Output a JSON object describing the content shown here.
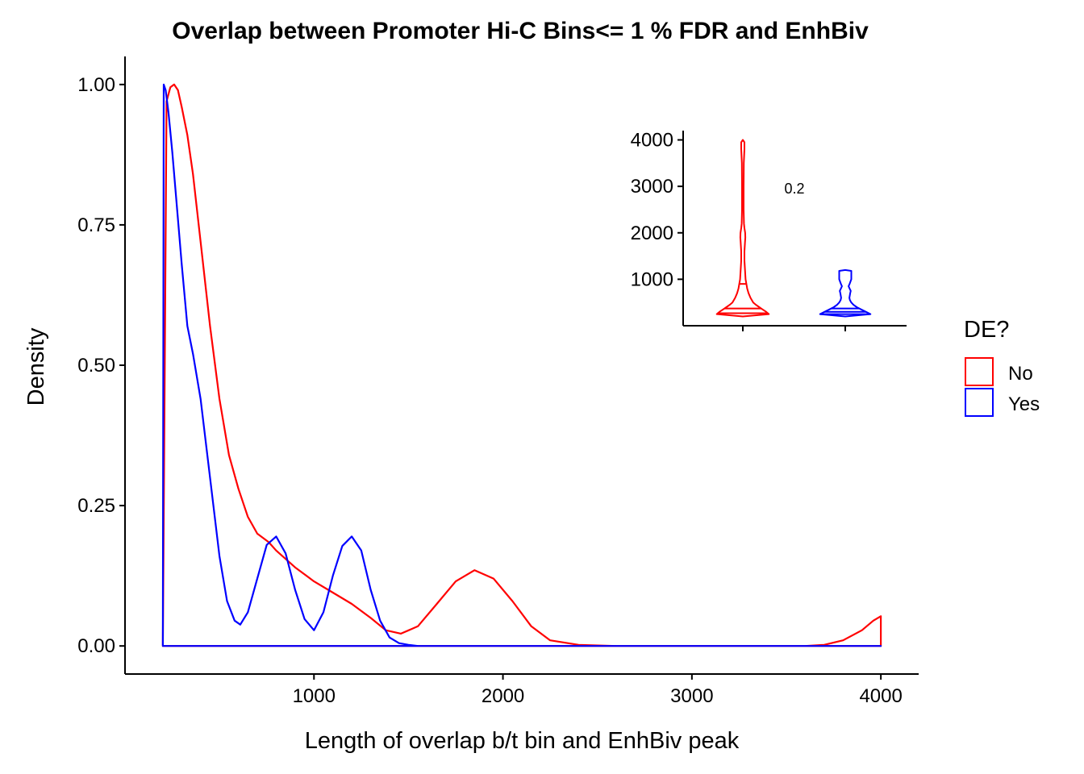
{
  "chart_data": [
    {
      "type": "area",
      "title": "Overlap between Promoter Hi-C Bins<= 1 % FDR and EnhBiv",
      "xlabel": "Length of overlap b/t bin and EnhBiv peak",
      "ylabel": "Density",
      "xlim": [
        0,
        4200
      ],
      "ylim": [
        -0.05,
        1.05
      ],
      "xticks": [
        1000,
        2000,
        3000,
        4000
      ],
      "xtick_labels": [
        "1000",
        "2000",
        "3000",
        "4000"
      ],
      "yticks": [
        0.0,
        0.25,
        0.5,
        0.75,
        1.0
      ],
      "ytick_labels": [
        "0.00",
        "0.25",
        "0.50",
        "0.75",
        "1.00"
      ],
      "grid": false,
      "legend": {
        "title": "DE?",
        "position": "right"
      },
      "series": [
        {
          "name": "No",
          "color": "#ff0000",
          "x": [
            200,
            220,
            240,
            260,
            280,
            300,
            330,
            360,
            400,
            450,
            500,
            550,
            600,
            650,
            700,
            760,
            800,
            900,
            1000,
            1100,
            1200,
            1300,
            1380,
            1460,
            1550,
            1650,
            1750,
            1850,
            1950,
            2050,
            2150,
            2250,
            2400,
            2600,
            3000,
            3400,
            3600,
            3700,
            3800,
            3900,
            3960,
            4000
          ],
          "y": [
            0.0,
            0.97,
            0.995,
            1.0,
            0.99,
            0.96,
            0.91,
            0.84,
            0.72,
            0.57,
            0.44,
            0.34,
            0.28,
            0.23,
            0.2,
            0.185,
            0.17,
            0.14,
            0.115,
            0.095,
            0.075,
            0.05,
            0.028,
            0.022,
            0.035,
            0.075,
            0.115,
            0.135,
            0.12,
            0.08,
            0.035,
            0.01,
            0.002,
            0.0,
            0.0,
            0.0,
            0.0,
            0.002,
            0.01,
            0.028,
            0.045,
            0.053
          ]
        },
        {
          "name": "Yes",
          "color": "#0000ff",
          "x": [
            200,
            205,
            215,
            230,
            250,
            270,
            300,
            330,
            360,
            400,
            450,
            500,
            540,
            580,
            610,
            650,
            700,
            750,
            800,
            850,
            900,
            950,
            1000,
            1050,
            1100,
            1150,
            1200,
            1250,
            1300,
            1350,
            1400,
            1450,
            1500,
            1550,
            1600,
            2000,
            4000
          ],
          "y": [
            0.0,
            1.0,
            0.99,
            0.95,
            0.88,
            0.8,
            0.68,
            0.57,
            0.52,
            0.44,
            0.3,
            0.16,
            0.08,
            0.045,
            0.038,
            0.06,
            0.12,
            0.18,
            0.195,
            0.165,
            0.1,
            0.048,
            0.028,
            0.06,
            0.125,
            0.178,
            0.195,
            0.17,
            0.1,
            0.045,
            0.015,
            0.005,
            0.002,
            0.0,
            0.0,
            0.0,
            0.0
          ]
        }
      ]
    },
    {
      "type": "violin",
      "title": "",
      "xlabel": "",
      "ylabel": "",
      "ylim": [
        0,
        4200
      ],
      "yticks": [
        1000,
        2000,
        3000,
        4000
      ],
      "ytick_labels": [
        "1000",
        "2000",
        "3000",
        "4000"
      ],
      "annotation": "0.2",
      "series": [
        {
          "name": "No",
          "color": "#ff0000",
          "profile_y": [
            200,
            250,
            300,
            350,
            400,
            450,
            500,
            600,
            700,
            800,
            900,
            1000,
            1200,
            1400,
            1600,
            1800,
            1900,
            2000,
            2100,
            2200,
            2500,
            3000,
            3500,
            3800,
            3950,
            4000
          ],
          "profile_w": [
            0.0,
            0.95,
            0.85,
            0.72,
            0.6,
            0.48,
            0.38,
            0.28,
            0.21,
            0.16,
            0.13,
            0.1,
            0.08,
            0.06,
            0.06,
            0.08,
            0.09,
            0.085,
            0.06,
            0.04,
            0.03,
            0.03,
            0.035,
            0.06,
            0.06,
            0.0
          ],
          "quantiles": [
            270,
            370,
            900
          ]
        },
        {
          "name": "Yes",
          "color": "#0000ff",
          "profile_y": [
            200,
            250,
            300,
            350,
            400,
            450,
            500,
            550,
            600,
            700,
            750,
            800,
            850,
            900,
            1000,
            1100,
            1180,
            1200
          ],
          "profile_w": [
            0.0,
            0.92,
            0.75,
            0.58,
            0.42,
            0.3,
            0.22,
            0.17,
            0.15,
            0.18,
            0.2,
            0.16,
            0.12,
            0.16,
            0.22,
            0.22,
            0.22,
            0.0
          ],
          "quantiles": [
            250,
            300,
            370
          ]
        }
      ]
    }
  ]
}
